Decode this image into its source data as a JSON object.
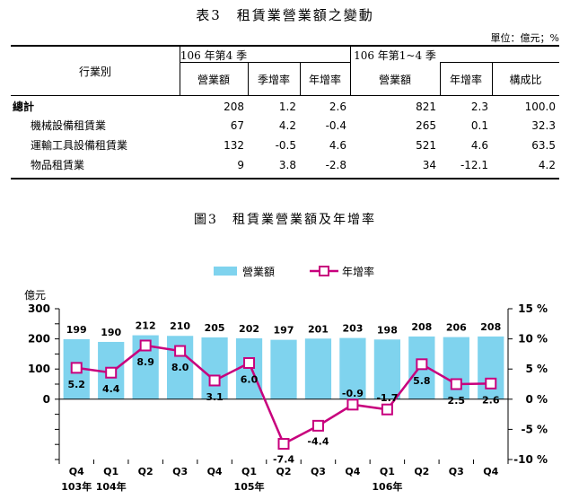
{
  "table": {
    "title": "表3　租賃業營業額之變動",
    "unit": "單位：億元；%",
    "headers": {
      "industry": "行業別",
      "q4_group_line1": "106 年第4 季",
      "q4_group_line2": "營業額",
      "qoq": "季增率",
      "yoy": "年增率",
      "ytd_group_line1": "106 年第1~4 季",
      "ytd_group_line2": "營業額",
      "ytd_yoy": "年增率",
      "share": "構成比"
    },
    "rows": [
      {
        "name": "總計",
        "q4": "208",
        "qoq": "1.2",
        "yoy": "2.6",
        "ytd": "821",
        "ytd_yoy": "2.3",
        "share": "100.0"
      },
      {
        "name": "機械設備租賃業",
        "q4": "67",
        "qoq": "4.2",
        "yoy": "-0.4",
        "ytd": "265",
        "ytd_yoy": "0.1",
        "share": "32.3"
      },
      {
        "name": "運輸工具設備租賃業",
        "q4": "132",
        "qoq": "-0.5",
        "yoy": "4.6",
        "ytd": "521",
        "ytd_yoy": "4.6",
        "share": "63.5"
      },
      {
        "name": "物品租賃業",
        "q4": "9",
        "qoq": "3.8",
        "yoy": "-2.8",
        "ytd": "34",
        "ytd_yoy": "-12.1",
        "share": "4.2"
      }
    ]
  },
  "chart_title": "圖3　租賃業營業額及年增率",
  "chart_data": {
    "type": "bar",
    "categories": [
      "Q4",
      "Q1",
      "Q2",
      "Q3",
      "Q4",
      "Q1",
      "Q2",
      "Q3",
      "Q4",
      "Q1",
      "Q2",
      "Q3",
      "Q4"
    ],
    "year_labels": [
      {
        "label": "103年",
        "index": 0
      },
      {
        "label": "104年",
        "index": 1
      },
      {
        "label": "105年",
        "index": 5
      },
      {
        "label": "106年",
        "index": 9
      }
    ],
    "series": [
      {
        "name": "營業額",
        "type": "bar",
        "axis": "left",
        "color": "#7fd3ee",
        "values": [
          199,
          190,
          212,
          210,
          205,
          202,
          197,
          201,
          203,
          198,
          208,
          206,
          208
        ]
      },
      {
        "name": "年增率",
        "type": "line",
        "axis": "right",
        "color": "#c8007d",
        "values": [
          5.2,
          4.4,
          8.9,
          8.0,
          3.1,
          6.0,
          -7.4,
          -4.4,
          -0.9,
          -1.7,
          5.8,
          2.5,
          2.6
        ]
      }
    ],
    "y_left": {
      "unit": "億元",
      "ticks": [
        "300",
        "200",
        "100",
        "0"
      ],
      "range": [
        -200,
        300
      ]
    },
    "y_right": {
      "ticks": [
        "15 %",
        "10 %",
        "5 %",
        "0 %",
        "-5 %",
        "-10 %"
      ],
      "range": [
        -10,
        15
      ]
    },
    "legend_position": "top-center",
    "grid": false
  }
}
